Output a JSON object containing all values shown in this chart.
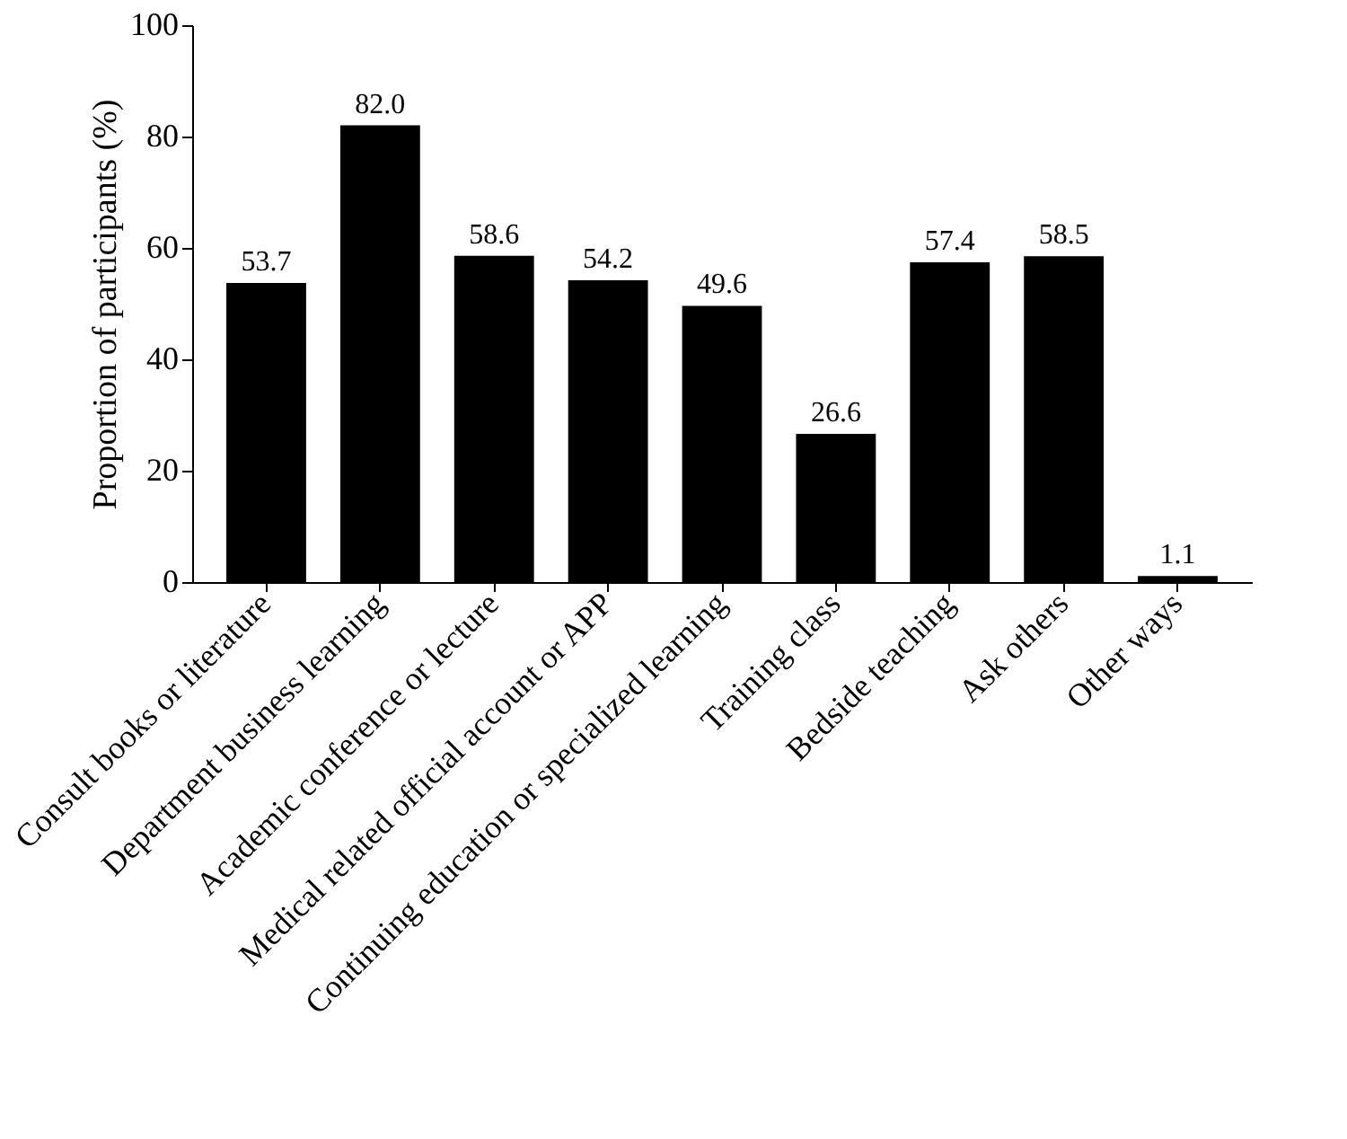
{
  "chart_data": {
    "type": "bar",
    "ylabel": "Proportion of participants (%)",
    "categories": [
      "Consult books or literature",
      "Department business learning",
      "Academic conference or lecture",
      "Medical related official account or APP",
      "Continuing education or specialized learning",
      "Training class",
      "Bedside teaching",
      "Ask others",
      "Other ways"
    ],
    "values": [
      53.7,
      82.0,
      58.6,
      54.2,
      49.6,
      26.6,
      57.4,
      58.5,
      1.1
    ],
    "value_labels": [
      "53.7",
      "82.0",
      "58.6",
      "54.2",
      "49.6",
      "26.6",
      "57.4",
      "58.5",
      "1.1"
    ],
    "color": "#000000",
    "ylim": [
      0,
      100
    ],
    "yticks": [
      0,
      20,
      40,
      60,
      80,
      100
    ],
    "grid": false
  }
}
